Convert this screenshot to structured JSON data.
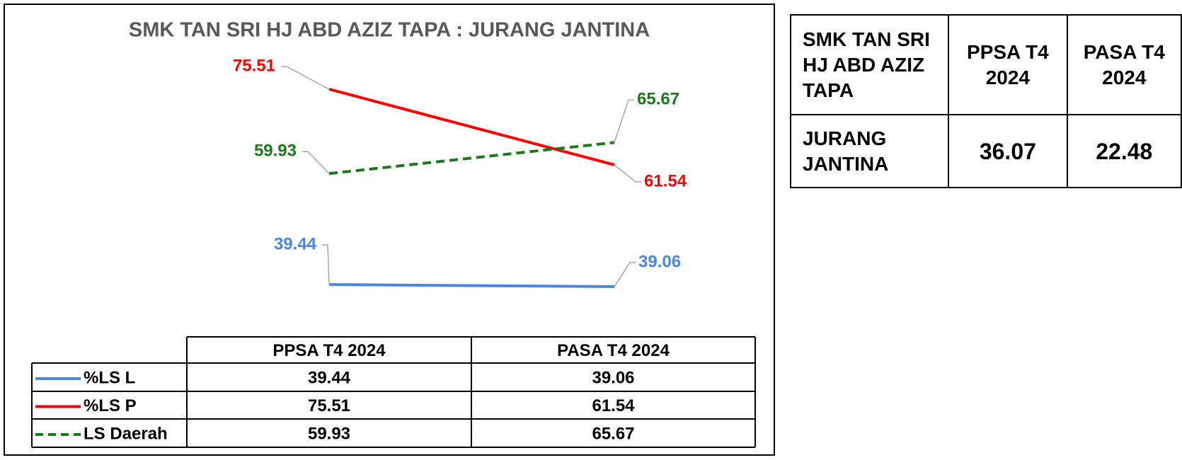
{
  "chart_data": {
    "type": "line",
    "title": "SMK TAN SRI HJ ABD AZIZ TAPA : JURANG JANTINA",
    "categories": [
      "PPSA T4 2024",
      "PASA T4 2024"
    ],
    "series": [
      {
        "name": "%LS L",
        "color": "#4a86e8",
        "values": [
          39.44,
          39.06
        ]
      },
      {
        "name": "%LS P",
        "color": "#ff0000",
        "values": [
          75.51,
          61.54
        ]
      },
      {
        "name": "LS Daerah",
        "color": "#1a7a1a",
        "dashed": true,
        "values": [
          59.93,
          65.67
        ]
      }
    ]
  },
  "table": {
    "header": [
      "SMK TAN SRI HJ ABD AZIZ TAPA",
      "PPSA T4 2024",
      "PASA T4 2024"
    ],
    "rows": [
      [
        "JURANG JANTINA",
        36.07,
        22.48
      ]
    ]
  }
}
